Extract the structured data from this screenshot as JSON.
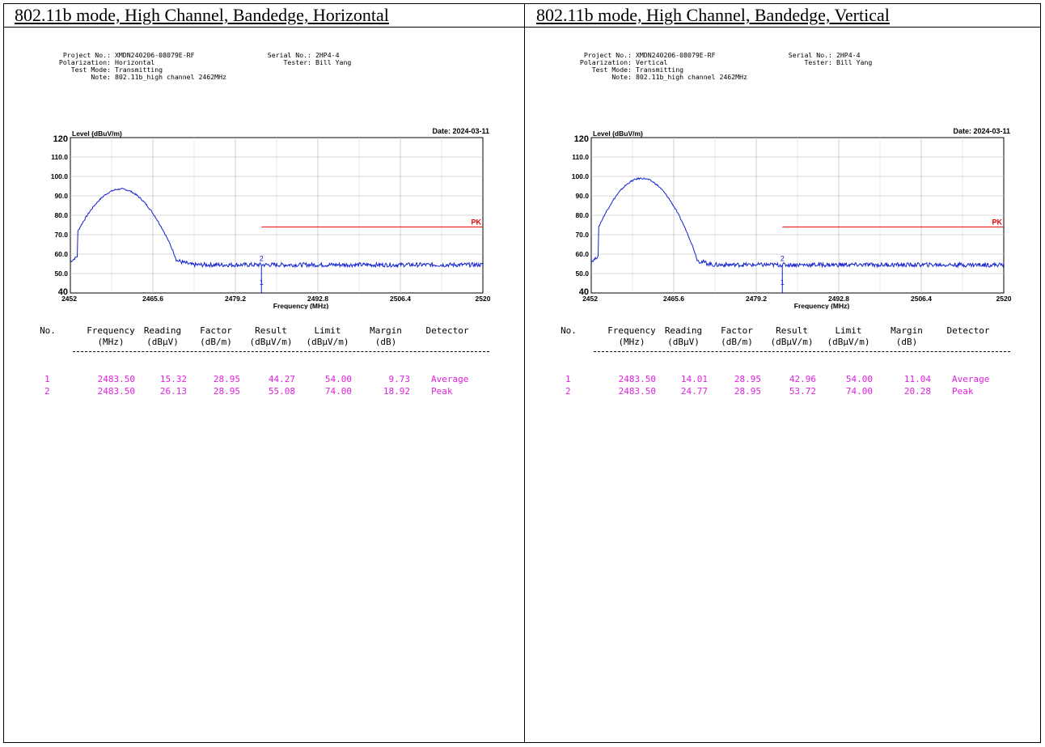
{
  "panels": [
    {
      "title": "802.11b mode, High Channel, Bandedge, Horizontal",
      "meta": {
        "project_label": "Project No.:",
        "project": "XMDN240206-08079E-RF",
        "polarization_label": "Polarization:",
        "polarization": "Horizontal",
        "mode_label": "Test Mode:",
        "mode": "Transmitting",
        "note_label": "Note:",
        "note": "802.11b_high channel 2462MHz",
        "serial_label": "Serial No.:",
        "serial": "2HP4-4",
        "tester_label": "Tester:",
        "tester": "Bill Yang"
      },
      "chart_data": {
        "type": "line",
        "date": "Date: 2024-03-11",
        "ylabel": "Level (dBuV/m)",
        "xlabel": "Frequency (MHz)",
        "ylim": [
          40,
          120
        ],
        "xlim": [
          2452,
          2520
        ],
        "xticks": [
          "2452",
          "2465.6",
          "2479.2",
          "2492.8",
          "2506.4",
          "2520"
        ],
        "yticks": [
          "40",
          "50.0",
          "60.0",
          "70.0",
          "80.0",
          "90.0",
          "100.0",
          "110.0",
          "120"
        ],
        "limit_label": "PK",
        "limit_value": 74,
        "limit_start": 2483.5,
        "peak": 93.5,
        "floor": 54.5,
        "markers": [
          "1",
          "2"
        ],
        "marker_freq": 2483.5
      },
      "table": {
        "headers": [
          "No.",
          "Frequency",
          "Reading",
          "Factor",
          "Result",
          "Limit",
          "Margin",
          "Detector"
        ],
        "units": [
          "",
          "(MHz)",
          "(dBμV)",
          "(dB/m)",
          "(dBμV/m)",
          "(dBμV/m)",
          "(dB)",
          ""
        ],
        "rows": [
          [
            "1",
            "2483.50",
            "15.32",
            "28.95",
            "44.27",
            "54.00",
            "9.73",
            "Average"
          ],
          [
            "2",
            "2483.50",
            "26.13",
            "28.95",
            "55.08",
            "74.00",
            "18.92",
            "Peak"
          ]
        ]
      }
    },
    {
      "title": "802.11b mode, High Channel, Bandedge, Vertical",
      "meta": {
        "project_label": "Project No.:",
        "project": "XMDN240206-08079E-RF",
        "polarization_label": "Polarization:",
        "polarization": "Vertical",
        "mode_label": "Test Mode:",
        "mode": "Transmitting",
        "note_label": "Note:",
        "note": "802.11b_high channel 2462MHz",
        "serial_label": "Serial No.:",
        "serial": "2HP4-4",
        "tester_label": "Tester:",
        "tester": "Bill Yang"
      },
      "chart_data": {
        "type": "line",
        "date": "Date: 2024-03-11",
        "ylabel": "Level (dBuV/m)",
        "xlabel": "Frequency (MHz)",
        "ylim": [
          40,
          120
        ],
        "xlim": [
          2452,
          2520
        ],
        "xticks": [
          "2452",
          "2465.6",
          "2479.2",
          "2492.8",
          "2506.4",
          "2520"
        ],
        "yticks": [
          "40",
          "50.0",
          "60.0",
          "70.0",
          "80.0",
          "90.0",
          "100.0",
          "110.0",
          "120"
        ],
        "limit_label": "PK",
        "limit_value": 74,
        "limit_start": 2483.5,
        "peak": 99.0,
        "floor": 54.5,
        "markers": [
          "1",
          "2"
        ],
        "marker_freq": 2483.5
      },
      "table": {
        "headers": [
          "No.",
          "Frequency",
          "Reading",
          "Factor",
          "Result",
          "Limit",
          "Margin",
          "Detector"
        ],
        "units": [
          "",
          "(MHz)",
          "(dBμV)",
          "(dB/m)",
          "(dBμV/m)",
          "(dBμV/m)",
          "(dB)",
          ""
        ],
        "rows": [
          [
            "1",
            "2483.50",
            "14.01",
            "28.95",
            "42.96",
            "54.00",
            "11.04",
            "Average"
          ],
          [
            "2",
            "2483.50",
            "24.77",
            "28.95",
            "53.72",
            "74.00",
            "20.28",
            "Peak"
          ]
        ]
      }
    }
  ]
}
